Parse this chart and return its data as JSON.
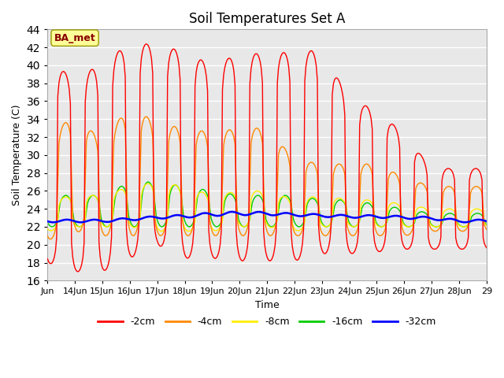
{
  "title": "Soil Temperatures Set A",
  "xlabel": "Time",
  "ylabel": "Soil Temperature (C)",
  "ylim": [
    16,
    44
  ],
  "yticks": [
    16,
    18,
    20,
    22,
    24,
    26,
    28,
    30,
    32,
    34,
    36,
    38,
    40,
    42,
    44
  ],
  "x_start": 13.0,
  "x_end": 29.0,
  "xtick_positions": [
    13,
    14,
    15,
    16,
    17,
    18,
    19,
    20,
    21,
    22,
    23,
    24,
    25,
    26,
    27,
    28,
    29
  ],
  "xtick_labels": [
    "Jun",
    "14Jun",
    "15Jun",
    "16Jun",
    "17Jun",
    "18Jun",
    "19Jun",
    "20Jun",
    "21Jun",
    "22Jun",
    "23Jun",
    "24Jun",
    "25Jun",
    "26Jun",
    "27Jun",
    "28Jun",
    "29"
  ],
  "colors": {
    "-2cm": "#ff0000",
    "-4cm": "#ff8800",
    "-8cm": "#ffee00",
    "-16cm": "#00cc00",
    "-32cm": "#0000ff"
  },
  "legend_label": "BA_met",
  "bg_color": "#e8e8e8",
  "grid_color": "#ffffff",
  "annotation_box_color": "#ffff99",
  "annotation_text_color": "#880000",
  "peaks_2cm": [
    40.5,
    38.5,
    40.2,
    42.5,
    42.3,
    41.5,
    40.0,
    41.3,
    41.3,
    41.5,
    41.7,
    36.2,
    35.0,
    32.3,
    28.5
  ],
  "troughs_2cm": [
    18.0,
    17.0,
    17.0,
    18.5,
    20.0,
    18.5,
    18.5,
    18.2,
    18.2,
    18.2,
    19.0,
    19.0,
    19.2,
    19.5,
    19.5
  ],
  "peaks_4cm": [
    32.0,
    34.5,
    31.5,
    35.5,
    33.5,
    33.0,
    32.5,
    33.0,
    33.0,
    29.5,
    29.0,
    29.0,
    29.0,
    27.5,
    26.5
  ],
  "troughs_4cm": [
    20.5,
    21.5,
    21.0,
    21.0,
    21.0,
    21.0,
    21.0,
    21.0,
    21.0,
    21.0,
    21.0,
    21.0,
    21.0,
    21.0,
    21.5
  ],
  "peaks_8cm": [
    25.0,
    25.5,
    25.5,
    26.5,
    27.0,
    26.5,
    25.5,
    26.0,
    26.0,
    25.0,
    25.5,
    25.0,
    25.0,
    24.5,
    24.0
  ],
  "troughs_8cm": [
    21.5,
    22.0,
    22.0,
    22.0,
    21.5,
    21.5,
    21.5,
    22.0,
    22.0,
    21.5,
    22.0,
    22.0,
    22.0,
    22.0,
    22.0
  ],
  "peaks_16cm": [
    25.5,
    25.5,
    25.5,
    27.0,
    27.0,
    26.5,
    26.0,
    25.5,
    25.5,
    25.5,
    25.0,
    25.0,
    24.5,
    24.0,
    23.5
  ],
  "troughs_16cm": [
    22.0,
    22.0,
    22.0,
    22.0,
    22.0,
    22.0,
    22.0,
    22.0,
    22.0,
    22.0,
    22.0,
    22.0,
    22.0,
    22.0,
    22.0
  ],
  "base_32cm": [
    22.5,
    22.5,
    22.5,
    22.7,
    22.9,
    23.0,
    23.2,
    23.3,
    23.3,
    23.2,
    23.1,
    23.0,
    23.0,
    22.9,
    22.8,
    22.5
  ],
  "amp_32cm": [
    0.3,
    0.3,
    0.3,
    0.3,
    0.3,
    0.35,
    0.4,
    0.4,
    0.35,
    0.3,
    0.3,
    0.3,
    0.3,
    0.3,
    0.3,
    0.3
  ]
}
